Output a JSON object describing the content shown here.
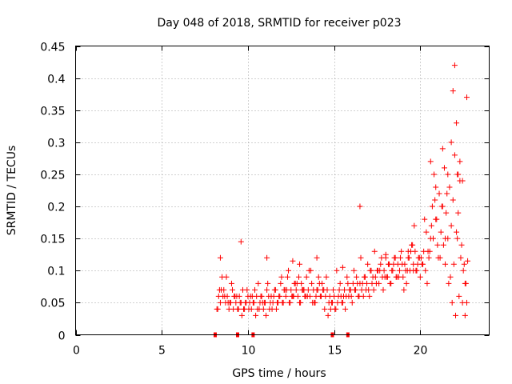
{
  "chart_data": {
    "type": "scatter",
    "title": "Day 048 of 2018, SRMTID for receiver p023",
    "xlabel": "GPS time / hours",
    "ylabel": "SRMTID / TECUs",
    "xlim": [
      0,
      24
    ],
    "ylim": [
      0,
      0.45
    ],
    "xticks": [
      0,
      5,
      10,
      15,
      20
    ],
    "yticks": [
      0,
      0.05,
      0.1,
      0.15,
      0.2,
      0.25,
      0.3,
      0.35,
      0.4,
      0.45
    ],
    "grid": true,
    "marker": "plus",
    "color": "#ff0000",
    "zero_markers_x": [
      8.1,
      9.4,
      10.3,
      14.9,
      15.8
    ],
    "series": [
      {
        "name": "SRMTID",
        "x": [
          8.2,
          8.3,
          8.4,
          8.5,
          8.6,
          8.7,
          8.8,
          8.9,
          9.0,
          9.1,
          9.2,
          9.3,
          9.4,
          9.5,
          9.6,
          9.7,
          9.8,
          9.9,
          10.0,
          10.1,
          10.2,
          10.3,
          10.4,
          10.5,
          10.6,
          10.7,
          10.8,
          10.9,
          11.0,
          11.1,
          11.2,
          11.3,
          11.4,
          11.5,
          11.6,
          11.7,
          11.8,
          11.9,
          12.0,
          12.1,
          12.2,
          12.3,
          12.4,
          12.5,
          12.6,
          12.7,
          12.8,
          12.9,
          13.0,
          13.1,
          13.2,
          13.3,
          13.4,
          13.5,
          13.6,
          13.7,
          13.8,
          13.9,
          14.0,
          14.1,
          14.2,
          14.3,
          14.4,
          14.5,
          14.6,
          14.7,
          14.8,
          14.9,
          15.0,
          15.1,
          15.2,
          15.3,
          15.4,
          15.5,
          15.6,
          15.7,
          15.8,
          15.9,
          16.0,
          16.1,
          16.2,
          16.3,
          16.4,
          16.5,
          16.6,
          16.7,
          16.8,
          16.9,
          17.0,
          17.1,
          17.2,
          17.3,
          17.4,
          17.5,
          17.6,
          17.7,
          17.8,
          17.9,
          18.0,
          18.1,
          18.2,
          18.3,
          18.4,
          18.5,
          18.6,
          18.7,
          18.8,
          18.9,
          19.0,
          19.1,
          19.2,
          19.3,
          19.4,
          19.5,
          19.6,
          19.7,
          19.8,
          19.9,
          20.0,
          20.1,
          20.2,
          20.3,
          20.4,
          20.5,
          20.6,
          20.7,
          20.8,
          20.9,
          21.0,
          21.1,
          21.2,
          21.3,
          21.4,
          21.5,
          21.6,
          21.7,
          21.8,
          21.9,
          22.0,
          22.1,
          22.2,
          22.3,
          22.4,
          22.5,
          22.6,
          22.7,
          8.25,
          8.45,
          8.65,
          8.85,
          9.05,
          9.25,
          9.45,
          9.65,
          9.85,
          10.05,
          10.25,
          10.45,
          10.65,
          10.85,
          11.05,
          11.25,
          11.45,
          11.65,
          11.85,
          12.05,
          12.25,
          12.45,
          12.65,
          12.85,
          13.05,
          13.25,
          13.45,
          13.65,
          13.85,
          14.05,
          14.25,
          14.45,
          14.65,
          14.85,
          15.05,
          15.25,
          15.45,
          15.65,
          15.85,
          16.05,
          16.25,
          16.45,
          16.65,
          16.85,
          17.05,
          17.25,
          17.45,
          17.65,
          17.85,
          18.05,
          18.25,
          18.45,
          18.65,
          18.85,
          19.05,
          19.25,
          19.45,
          19.65,
          19.85,
          20.05,
          20.25,
          20.45,
          20.65,
          20.85,
          21.05,
          21.25,
          21.45,
          21.65,
          21.85,
          22.05,
          22.25,
          22.45,
          22.65,
          8.35,
          8.55,
          8.75,
          8.95,
          9.15,
          9.35,
          9.55,
          9.75,
          9.95,
          10.15,
          10.35,
          10.55,
          10.75,
          10.95,
          11.15,
          11.35,
          11.55,
          11.75,
          11.95,
          12.15,
          12.35,
          12.55,
          12.75,
          12.95,
          13.15,
          13.35,
          13.55,
          13.75,
          13.95,
          14.15,
          14.35,
          14.55,
          14.75,
          14.95,
          15.15,
          15.35,
          15.55,
          15.75,
          15.95,
          16.15,
          16.35,
          16.55,
          16.75,
          16.95,
          17.15,
          17.35,
          17.55,
          17.75,
          17.95,
          18.15,
          18.35,
          18.55,
          18.75,
          18.95,
          19.15,
          19.35,
          19.55,
          19.75,
          19.95,
          20.15,
          20.35,
          20.55,
          20.75,
          20.95,
          21.15,
          21.35,
          21.55,
          21.75,
          21.95,
          22.15,
          22.35,
          22.55,
          22.75,
          8.4,
          9.6,
          11.1,
          12.6,
          13.0,
          14.0,
          15.5,
          16.5,
          18.0,
          19.3,
          20.6,
          21.3,
          21.6,
          21.8,
          22.0,
          22.1,
          22.2,
          22.3,
          22.45,
          22.6,
          22.7,
          21.45,
          21.9,
          22.15,
          20.9,
          19.6
        ],
        "y": [
          0.04,
          0.06,
          0.05,
          0.09,
          0.07,
          0.05,
          0.06,
          0.04,
          0.05,
          0.07,
          0.06,
          0.05,
          0.04,
          0.06,
          0.05,
          0.07,
          0.04,
          0.05,
          0.06,
          0.05,
          0.04,
          0.05,
          0.07,
          0.06,
          0.08,
          0.05,
          0.06,
          0.04,
          0.05,
          0.07,
          0.06,
          0.05,
          0.04,
          0.06,
          0.07,
          0.05,
          0.06,
          0.08,
          0.05,
          0.07,
          0.06,
          0.09,
          0.05,
          0.07,
          0.06,
          0.08,
          0.07,
          0.06,
          0.05,
          0.08,
          0.07,
          0.06,
          0.09,
          0.07,
          0.06,
          0.08,
          0.07,
          0.05,
          0.07,
          0.09,
          0.06,
          0.08,
          0.07,
          0.06,
          0.07,
          0.05,
          0.04,
          0.05,
          0.06,
          0.04,
          0.05,
          0.07,
          0.06,
          0.05,
          0.07,
          0.06,
          0.08,
          0.07,
          0.06,
          0.08,
          0.07,
          0.09,
          0.06,
          0.08,
          0.07,
          0.06,
          0.09,
          0.08,
          0.07,
          0.1,
          0.08,
          0.07,
          0.09,
          0.1,
          0.08,
          0.11,
          0.09,
          0.1,
          0.12,
          0.09,
          0.11,
          0.08,
          0.1,
          0.12,
          0.09,
          0.11,
          0.1,
          0.13,
          0.09,
          0.11,
          0.08,
          0.12,
          0.1,
          0.14,
          0.11,
          0.13,
          0.1,
          0.12,
          0.09,
          0.11,
          0.13,
          0.1,
          0.08,
          0.12,
          0.15,
          0.2,
          0.25,
          0.18,
          0.14,
          0.22,
          0.16,
          0.2,
          0.26,
          0.19,
          0.15,
          0.23,
          0.17,
          0.21,
          0.28,
          0.16,
          0.19,
          0.24,
          0.14,
          0.1,
          0.03,
          0.05,
          0.04,
          0.07,
          0.06,
          0.05,
          0.08,
          0.06,
          0.04,
          0.03,
          0.05,
          0.04,
          0.06,
          0.03,
          0.04,
          0.05,
          0.03,
          0.04,
          0.05,
          0.04,
          0.06,
          0.05,
          0.07,
          0.05,
          0.06,
          0.08,
          0.05,
          0.07,
          0.06,
          0.1,
          0.05,
          0.07,
          0.06,
          0.04,
          0.03,
          0.05,
          0.04,
          0.06,
          0.05,
          0.04,
          0.06,
          0.05,
          0.07,
          0.06,
          0.08,
          0.07,
          0.06,
          0.09,
          0.08,
          0.1,
          0.07,
          0.09,
          0.08,
          0.11,
          0.09,
          0.12,
          0.07,
          0.1,
          0.13,
          0.17,
          0.11,
          0.12,
          0.18,
          0.13,
          0.17,
          0.21,
          0.12,
          0.2,
          0.11,
          0.08,
          0.05,
          0.03,
          0.06,
          0.05,
          0.08,
          0.07,
          0.06,
          0.09,
          0.05,
          0.04,
          0.06,
          0.05,
          0.04,
          0.07,
          0.06,
          0.05,
          0.04,
          0.06,
          0.05,
          0.08,
          0.06,
          0.07,
          0.05,
          0.09,
          0.07,
          0.1,
          0.06,
          0.08,
          0.09,
          0.07,
          0.06,
          0.1,
          0.05,
          0.06,
          0.08,
          0.07,
          0.09,
          0.06,
          0.07,
          0.1,
          0.08,
          0.06,
          0.09,
          0.07,
          0.1,
          0.08,
          0.12,
          0.09,
          0.11,
          0.1,
          0.13,
          0.1,
          0.12,
          0.09,
          0.11,
          0.1,
          0.12,
          0.09,
          0.11,
          0.1,
          0.12,
          0.14,
          0.1,
          0.12,
          0.11,
          0.16,
          0.13,
          0.15,
          0.18,
          0.12,
          0.14,
          0.22,
          0.09,
          0.11,
          0.15,
          0.12,
          0.11,
          0.115,
          0.12,
          0.145,
          0.12,
          0.115,
          0.11,
          0.12,
          0.105,
          0.2,
          0.125,
          0.13,
          0.27,
          0.29,
          0.25,
          0.3,
          0.42,
          0.33,
          0.25,
          0.27,
          0.24,
          0.08,
          0.37,
          0.15,
          0.38,
          0.25,
          0.23,
          0.1
        ]
      }
    ]
  }
}
